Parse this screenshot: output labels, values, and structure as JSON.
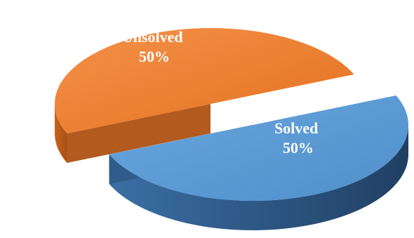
{
  "chart_data": {
    "type": "pie",
    "style": "3d-exploded",
    "title": "",
    "slices": [
      {
        "label": "Unsolved",
        "value": 50,
        "percent_label": "50%",
        "color": "#ED7D31",
        "side_color": "#B35A1F"
      },
      {
        "label": "Solved",
        "value": 50,
        "percent_label": "50%",
        "color": "#5B9BD5",
        "side_color": "#2F5C8A"
      }
    ],
    "legend": "none"
  }
}
